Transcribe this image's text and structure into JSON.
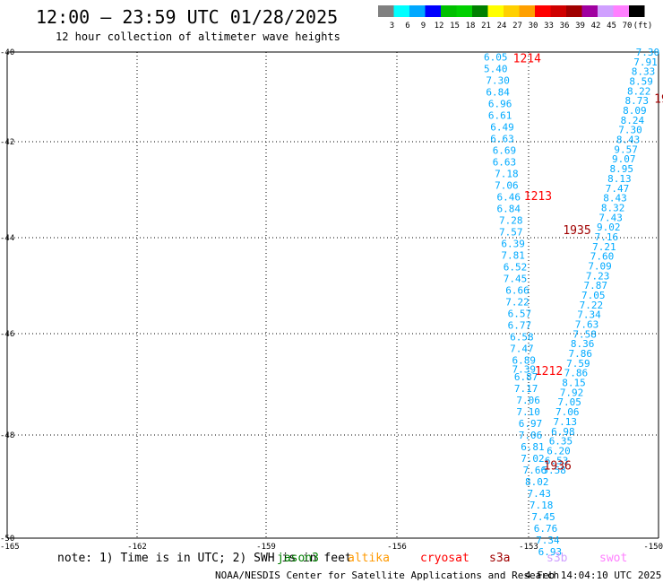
{
  "header": {
    "title": "12:00 – 23:59 UTC 01/28/2025",
    "subtitle": "12 hour collection of altimeter wave heights"
  },
  "colorbar": {
    "labels": [
      "3",
      "6",
      "9",
      "12",
      "15",
      "18",
      "21",
      "24",
      "27",
      "30",
      "33",
      "36",
      "39",
      "42",
      "45",
      "70",
      "(ft)"
    ],
    "colors": [
      "#808080",
      "#00ffff",
      "#00a8ff",
      "#0000ff",
      "#00c000",
      "#00d000",
      "#008000",
      "#ffff00",
      "#ffd000",
      "#ffa000",
      "#ff0000",
      "#d00000",
      "#a00000",
      "#a000a0",
      "#d0a0ff",
      "#ff80ff",
      "#000000"
    ]
  },
  "footer": {
    "note": "note:  1) Time is in UTC; 2) SWH is in feet",
    "satellites": [
      {
        "label": "jason3",
        "color": "#008000"
      },
      {
        "label": "altika",
        "color": "#ff9900"
      },
      {
        "label": "cryosat",
        "color": "#ff0000"
      },
      {
        "label": "s3a",
        "color": "#a00000"
      },
      {
        "label": "s3b",
        "color": "#d0a0ff"
      },
      {
        "label": "swot",
        "color": "#ff80ff"
      }
    ],
    "credit": "NOAA/NESDIS Center for Satellite Applications and Research",
    "timestamp": "4 Feb 14:04:10 UTC 2025"
  },
  "chart_data": {
    "type": "scatter",
    "xlim": [
      -165,
      -150
    ],
    "ylim": [
      -50,
      -40
    ],
    "xticks": [
      "-165",
      "-162",
      "-159",
      "-156",
      "-153",
      "-150"
    ],
    "yticks": [
      "-40",
      "-42",
      "-44",
      "-46",
      "-48",
      "-50"
    ],
    "grid": true,
    "series": [
      {
        "color": "#00aaff",
        "points": [
          [
            -153.75,
            -40.1,
            "6.05"
          ],
          [
            -153.75,
            -40.34,
            "5.40"
          ],
          [
            -153.7,
            -40.58,
            "7.30"
          ],
          [
            -153.7,
            -40.82,
            "6.84"
          ],
          [
            -153.65,
            -41.06,
            "6.96"
          ],
          [
            -153.65,
            -41.3,
            "6.61"
          ],
          [
            -153.6,
            -41.54,
            "6.49"
          ],
          [
            -153.6,
            -41.78,
            "6.63"
          ],
          [
            -153.55,
            -42.02,
            "6.69"
          ],
          [
            -153.55,
            -42.26,
            "6.63"
          ],
          [
            -153.5,
            -42.5,
            "7.18"
          ],
          [
            -153.5,
            -42.74,
            "7.06"
          ],
          [
            -153.45,
            -42.98,
            "6.46"
          ],
          [
            -153.45,
            -43.22,
            "6.84"
          ],
          [
            -153.4,
            -43.46,
            "7.28"
          ],
          [
            -153.4,
            -43.7,
            "7.57"
          ],
          [
            -153.35,
            -43.94,
            "6.39"
          ],
          [
            -153.35,
            -44.18,
            "7.81"
          ],
          [
            -153.3,
            -44.42,
            "6.52"
          ],
          [
            -153.3,
            -44.66,
            "7.45"
          ],
          [
            -153.25,
            -44.9,
            "6.66"
          ],
          [
            -153.25,
            -45.14,
            "7.22"
          ],
          [
            -153.2,
            -45.38,
            "6.57"
          ],
          [
            -153.2,
            -45.62,
            "6.77"
          ],
          [
            -153.15,
            -45.86,
            "6.58"
          ],
          [
            -153.15,
            -46.1,
            "7.47"
          ],
          [
            -153.1,
            -46.34,
            "6.89"
          ],
          [
            -153.1,
            -46.52,
            "7.39"
          ],
          [
            -153.05,
            -46.68,
            "6.87"
          ],
          [
            -153.05,
            -46.92,
            "7.17"
          ],
          [
            -153.0,
            -47.16,
            "7.06"
          ],
          [
            -153.0,
            -47.4,
            "7.10"
          ],
          [
            -152.95,
            -47.64,
            "6.97"
          ],
          [
            -152.95,
            -47.88,
            "7.06"
          ],
          [
            -152.9,
            -48.12,
            "6.81"
          ],
          [
            -152.9,
            -48.36,
            "7.02"
          ],
          [
            -152.85,
            -48.6,
            "7.66"
          ],
          [
            -152.8,
            -48.84,
            "8.02"
          ],
          [
            -152.75,
            -49.08,
            "7.43"
          ],
          [
            -152.7,
            -49.32,
            "7.18"
          ],
          [
            -152.65,
            -49.56,
            "7.45"
          ],
          [
            -152.6,
            -49.8,
            "6.76"
          ],
          [
            -152.55,
            -50.04,
            "7.34"
          ],
          [
            -152.5,
            -50.28,
            "6.93"
          ]
        ]
      },
      {
        "color": "#00aaff",
        "points": [
          [
            -150.25,
            -40.0,
            "7.30"
          ],
          [
            -150.3,
            -40.2,
            "7.91"
          ],
          [
            -150.35,
            -40.4,
            "8.33"
          ],
          [
            -150.4,
            -40.6,
            "8.59"
          ],
          [
            -150.45,
            -40.8,
            "8.22"
          ],
          [
            -150.5,
            -41.0,
            "8.73"
          ],
          [
            -150.55,
            -41.2,
            "8.09"
          ],
          [
            -150.6,
            -41.4,
            "8.24"
          ],
          [
            -150.65,
            -41.6,
            "7.30"
          ],
          [
            -150.7,
            -41.8,
            "8.43"
          ],
          [
            -150.75,
            -42.0,
            "9.57"
          ],
          [
            -150.8,
            -42.2,
            "9.07"
          ],
          [
            -150.85,
            -42.4,
            "8.95"
          ],
          [
            -150.9,
            -42.6,
            "8.13"
          ],
          [
            -150.95,
            -42.8,
            "7.47"
          ],
          [
            -151.0,
            -43.0,
            "8.43"
          ],
          [
            -151.05,
            -43.2,
            "8.32"
          ],
          [
            -151.1,
            -43.4,
            "7.43"
          ],
          [
            -151.15,
            -43.6,
            "9.02"
          ],
          [
            -151.2,
            -43.8,
            "7.16"
          ],
          [
            -151.25,
            -44.0,
            "7.21"
          ],
          [
            -151.3,
            -44.2,
            "7.60"
          ],
          [
            -151.35,
            -44.4,
            "7.09"
          ],
          [
            -151.4,
            -44.6,
            "7.23"
          ],
          [
            -151.45,
            -44.8,
            "7.87"
          ],
          [
            -151.5,
            -45.0,
            "7.05"
          ],
          [
            -151.55,
            -45.2,
            "7.22"
          ],
          [
            -151.6,
            -45.4,
            "7.34"
          ],
          [
            -151.65,
            -45.6,
            "7.63"
          ],
          [
            -151.7,
            -45.8,
            "7.58"
          ],
          [
            -151.75,
            -46.0,
            "8.36"
          ],
          [
            -151.8,
            -46.2,
            "7.86"
          ],
          [
            -151.85,
            -46.4,
            "7.59"
          ],
          [
            -151.9,
            -46.6,
            "7.86"
          ],
          [
            -151.95,
            -46.8,
            "8.15"
          ],
          [
            -152.0,
            -47.0,
            "7.92"
          ],
          [
            -152.05,
            -47.2,
            "7.05"
          ],
          [
            -152.1,
            -47.4,
            "7.06"
          ],
          [
            -152.15,
            -47.6,
            "7.13"
          ],
          [
            -152.2,
            -47.8,
            "6.98"
          ],
          [
            -152.25,
            -48.0,
            "6.35"
          ],
          [
            -152.3,
            -48.2,
            "6.20"
          ],
          [
            -152.35,
            -48.4,
            "6.53"
          ],
          [
            -152.4,
            -48.6,
            "5.58"
          ]
        ]
      }
    ],
    "time_labels": [
      {
        "x": -153.35,
        "y": -40.12,
        "text": "1214",
        "color": "#ff0000"
      },
      {
        "x": -153.1,
        "y": -42.95,
        "text": "1213",
        "color": "#ff0000"
      },
      {
        "x": -152.85,
        "y": -46.55,
        "text": "1212",
        "color": "#ff0000"
      },
      {
        "x": -150.1,
        "y": -40.95,
        "text": "19",
        "color": "#a00000"
      },
      {
        "x": -152.2,
        "y": -43.65,
        "text": "1935",
        "color": "#a00000"
      },
      {
        "x": -152.65,
        "y": -48.5,
        "text": "1936",
        "color": "#a00000"
      }
    ]
  }
}
